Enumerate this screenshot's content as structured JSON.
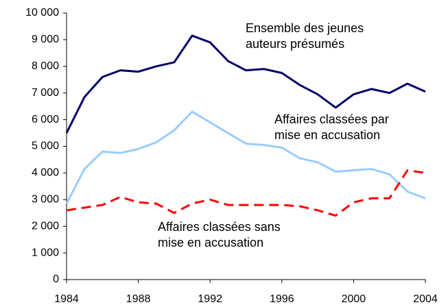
{
  "chart_data": {
    "type": "line",
    "x": [
      1984,
      1985,
      1986,
      1987,
      1988,
      1989,
      1990,
      1991,
      1992,
      1993,
      1994,
      1995,
      1996,
      1997,
      1998,
      1999,
      2000,
      2001,
      2002,
      2003,
      2004
    ],
    "series": [
      {
        "name": "Ensemble des jeunes auteurs présumés",
        "color": "#000066",
        "dashed": false,
        "values": [
          5500,
          6850,
          7600,
          7850,
          7800,
          8000,
          8150,
          9150,
          8900,
          8200,
          7850,
          7900,
          7750,
          7300,
          6950,
          6450,
          6950,
          7150,
          7000,
          7350,
          7050
        ]
      },
      {
        "name": "Affaires classées par mise en accusation",
        "color": "#99ccff",
        "dashed": false,
        "values": [
          2850,
          4150,
          4800,
          4750,
          4900,
          5150,
          5600,
          6300,
          5900,
          5500,
          5100,
          5050,
          4950,
          4550,
          4400,
          4050,
          4100,
          4150,
          3950,
          3300,
          3050
        ]
      },
      {
        "name": "Affaires classées sans mise en accusation",
        "color": "#ff0000",
        "dashed": true,
        "values": [
          2600,
          2700,
          2800,
          3100,
          2900,
          2850,
          2500,
          2850,
          3000,
          2800,
          2800,
          2800,
          2800,
          2750,
          2600,
          2400,
          2900,
          3050,
          3050,
          4100,
          4000
        ]
      }
    ],
    "xlim": [
      1984,
      2004
    ],
    "xticks": [
      1984,
      1988,
      1992,
      1996,
      2000,
      2004
    ],
    "ylim": [
      0,
      10000
    ],
    "yticks": [
      0,
      {
        "value": 1000,
        "label": "1 000"
      },
      {
        "value": 2000,
        "label": "2 000"
      },
      {
        "value": 3000,
        "label": "3 000"
      },
      {
        "value": 4000,
        "label": "4 000"
      },
      {
        "value": 5000,
        "label": "5 000"
      },
      {
        "value": 6000,
        "label": "6 000"
      },
      {
        "value": 7000,
        "label": "7 000"
      },
      {
        "value": 8000,
        "label": "8 000"
      },
      {
        "value": 9000,
        "label": "9 000"
      },
      {
        "value": 10000,
        "label": "10 000"
      }
    ],
    "grid": false
  }
}
